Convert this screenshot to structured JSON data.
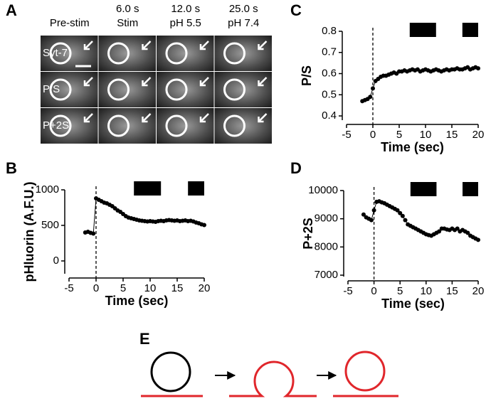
{
  "panel_labels": [
    "A",
    "B",
    "C",
    "D",
    "E"
  ],
  "panel_a": {
    "columns": [
      {
        "lines": [
          "Pre-stim"
        ]
      },
      {
        "lines": [
          "6.0 s",
          "Stim"
        ]
      },
      {
        "lines": [
          "12.0 s",
          "pH 5.5"
        ]
      },
      {
        "lines": [
          "25.0 s",
          "pH 7.4"
        ]
      }
    ],
    "rows": [
      "Syt-7",
      "P/S",
      "P+2S"
    ]
  },
  "chart_data": [
    {
      "type": "line",
      "xlabel": "Time (sec)",
      "ylabel": "pHluorin (A.F.U.)",
      "xlim": [
        -5,
        20
      ],
      "xticks": [
        -5,
        0,
        5,
        10,
        15,
        20
      ],
      "ylim": [
        -180,
        1000
      ],
      "yticks": [
        0,
        500,
        1000
      ],
      "marker_x": 0,
      "stimulus_bars": [
        {
          "start": 7,
          "end": 12
        },
        {
          "start": 17,
          "end": 20
        }
      ],
      "x": [
        -2,
        -1.5,
        -1,
        -0.5,
        0,
        0.5,
        1,
        1.5,
        2,
        2.5,
        3,
        3.5,
        4,
        4.5,
        5,
        5.5,
        6,
        6.5,
        7,
        7.5,
        8,
        8.5,
        9,
        9.5,
        10,
        10.5,
        11,
        11.5,
        12,
        12.5,
        13,
        13.5,
        14,
        14.5,
        15,
        15.5,
        16,
        16.5,
        17,
        17.5,
        18,
        18.5,
        19,
        19.5,
        20
      ],
      "series": [
        {
          "color": "#000000",
          "values": [
            400,
            410,
            395,
            385,
            880,
            860,
            840,
            820,
            810,
            790,
            770,
            740,
            710,
            690,
            660,
            630,
            610,
            600,
            590,
            580,
            570,
            565,
            560,
            555,
            560,
            555,
            550,
            560,
            565,
            560,
            570,
            575,
            570,
            565,
            570,
            560,
            565,
            570,
            560,
            565,
            555,
            540,
            530,
            515,
            505
          ]
        }
      ]
    },
    {
      "type": "line",
      "xlabel": "Time (sec)",
      "ylabel": "P/S",
      "xlim": [
        -5,
        20
      ],
      "xticks": [
        -5,
        0,
        5,
        10,
        15,
        20
      ],
      "ylim": [
        0.38,
        0.8
      ],
      "yticks": [
        0.4,
        0.5,
        0.6,
        0.7,
        0.8
      ],
      "marker_x": 0,
      "stimulus_bars": [
        {
          "start": 7,
          "end": 12
        },
        {
          "start": 17,
          "end": 20
        }
      ],
      "x": [
        -2,
        -1.5,
        -1,
        -0.5,
        0,
        0.5,
        1,
        1.5,
        2,
        2.5,
        3,
        3.5,
        4,
        4.5,
        5,
        5.5,
        6,
        6.5,
        7,
        7.5,
        8,
        8.5,
        9,
        9.5,
        10,
        10.5,
        11,
        11.5,
        12,
        12.5,
        13,
        13.5,
        14,
        14.5,
        15,
        15.5,
        16,
        16.5,
        17,
        17.5,
        18,
        18.5,
        19,
        19.5,
        20
      ],
      "series": [
        {
          "color": "#000000",
          "values": [
            0.47,
            0.475,
            0.48,
            0.49,
            0.53,
            0.565,
            0.575,
            0.585,
            0.59,
            0.59,
            0.595,
            0.6,
            0.605,
            0.6,
            0.61,
            0.61,
            0.615,
            0.61,
            0.615,
            0.62,
            0.615,
            0.62,
            0.61,
            0.615,
            0.62,
            0.615,
            0.61,
            0.615,
            0.62,
            0.615,
            0.61,
            0.615,
            0.62,
            0.615,
            0.62,
            0.62,
            0.625,
            0.62,
            0.62,
            0.625,
            0.63,
            0.62,
            0.625,
            0.63,
            0.625
          ]
        }
      ]
    },
    {
      "type": "line",
      "xlabel": "Time (sec)",
      "ylabel": "P+2S",
      "xlim": [
        -5,
        20
      ],
      "xticks": [
        -5,
        0,
        5,
        10,
        15,
        20
      ],
      "ylim": [
        6950,
        10000
      ],
      "yticks": [
        7000,
        8000,
        9000,
        10000
      ],
      "marker_x": 0,
      "stimulus_bars": [
        {
          "start": 7,
          "end": 12
        },
        {
          "start": 17,
          "end": 20
        }
      ],
      "x": [
        -2,
        -1.5,
        -1,
        -0.5,
        0,
        0.5,
        1,
        1.5,
        2,
        2.5,
        3,
        3.5,
        4,
        4.5,
        5,
        5.5,
        6,
        6.5,
        7,
        7.5,
        8,
        8.5,
        9,
        9.5,
        10,
        10.5,
        11,
        11.5,
        12,
        12.5,
        13,
        13.5,
        14,
        14.5,
        15,
        15.5,
        16,
        16.5,
        17,
        17.5,
        18,
        18.5,
        19,
        19.5,
        20
      ],
      "series": [
        {
          "color": "#000000",
          "values": [
            9150,
            9050,
            9000,
            8950,
            9300,
            9600,
            9620,
            9580,
            9550,
            9500,
            9450,
            9400,
            9350,
            9300,
            9200,
            9100,
            8950,
            8800,
            8750,
            8700,
            8650,
            8600,
            8550,
            8500,
            8450,
            8420,
            8400,
            8450,
            8500,
            8550,
            8650,
            8650,
            8620,
            8600,
            8650,
            8600,
            8650,
            8550,
            8600,
            8550,
            8500,
            8400,
            8350,
            8300,
            8250
          ]
        }
      ]
    }
  ]
}
